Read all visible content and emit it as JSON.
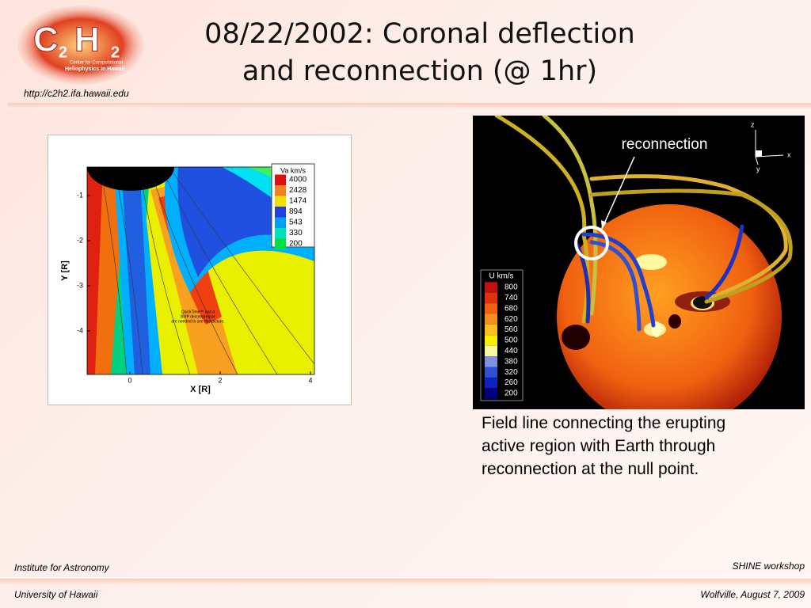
{
  "header": {
    "title_lines": [
      "08/22/2002: Coronal deflection",
      "and reconnection (@ 1hr)"
    ],
    "url": "http://c2h2.ifa.hawaii.edu",
    "logo": {
      "letters": [
        "C",
        "2",
        "H",
        "2"
      ],
      "lines": [
        "Center for Computational",
        "Heliophysics in Hawaii"
      ]
    }
  },
  "left_figure": {
    "legend_title": "Va km/s",
    "legend_values": [
      "4000",
      "2428",
      "1474",
      "894",
      "543",
      "330",
      "200"
    ],
    "y_label": "Y [R]",
    "x_label": "X [R]",
    "y_ticks": [
      "-1",
      "-2",
      "-3",
      "-4"
    ],
    "x_ticks": [
      "0",
      "2",
      "4"
    ],
    "placeholder": [
      "QuickTime™ and a",
      "BMP decompressor",
      "are needed to see this picture."
    ]
  },
  "right_figure": {
    "annotation": "reconnection",
    "legend_title": "U km/s",
    "legend_values": [
      "800",
      "740",
      "680",
      "620",
      "560",
      "500",
      "440",
      "380",
      "320",
      "260",
      "200"
    ],
    "axes": [
      "z",
      "x",
      "y"
    ]
  },
  "caption_lines": [
    "Field line connecting the erupting",
    "active region with Earth through",
    "reconnection at the null point."
  ],
  "footer": {
    "left_top": "Institute for Astronomy",
    "left_bottom": "University of Hawaii",
    "right_top": "SHINE workshop",
    "right_bottom": "Wolfville, August 7, 2009"
  }
}
